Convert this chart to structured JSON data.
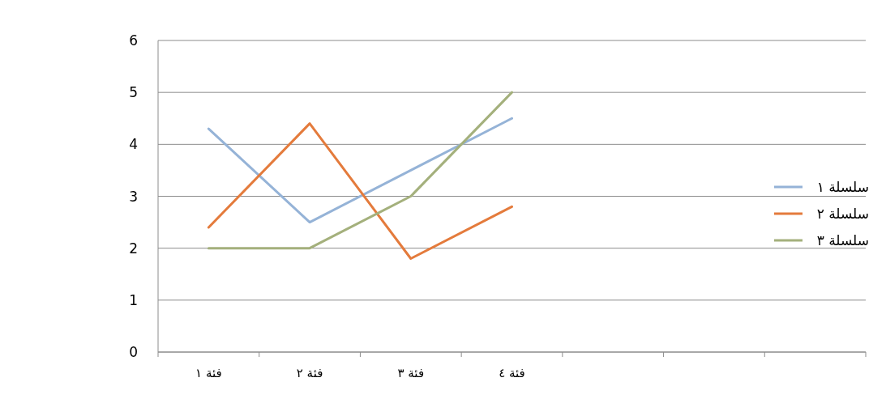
{
  "chart_data": {
    "type": "line",
    "categories": [
      "فئة ١",
      "فئة ٢",
      "فئة ٣",
      "فئة ٤",
      null,
      null,
      null
    ],
    "series": [
      {
        "name": "سلسلة ١",
        "color": "#95b3d7",
        "values": [
          4.3,
          2.5,
          3.5,
          4.5,
          null,
          null,
          null
        ]
      },
      {
        "name": "سلسلة ٢",
        "color": "#e47b3c",
        "values": [
          2.4,
          4.4,
          1.8,
          2.8,
          null,
          null,
          null
        ]
      },
      {
        "name": "سلسلة ٣",
        "color": "#a4b07c",
        "values": [
          2.0,
          2.0,
          3.0,
          5.0,
          null,
          null,
          null
        ]
      }
    ],
    "ylim": [
      0,
      6
    ],
    "yticks": [
      0,
      1,
      2,
      3,
      4,
      5,
      6
    ],
    "grid": "y",
    "legend": "right"
  }
}
